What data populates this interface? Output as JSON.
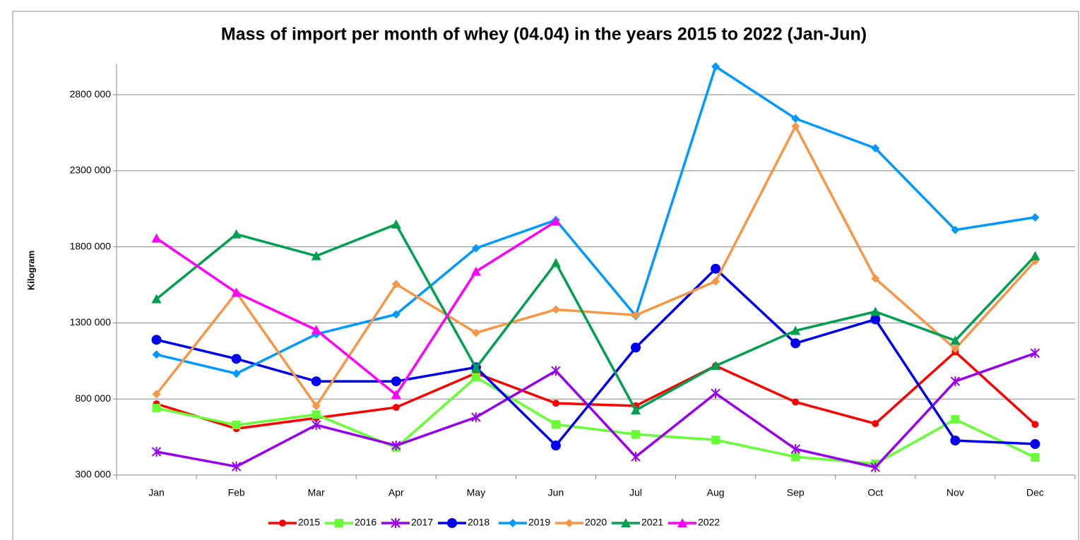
{
  "chart_data": {
    "type": "line",
    "title": "Mass of import per month of whey (04.04) in the years 2015 to 2022 (Jan-Jun)",
    "y_label": "Kilogram",
    "categories": [
      "Jan",
      "Feb",
      "Mar",
      "Apr",
      "May",
      "Jun",
      "Jul",
      "Aug",
      "Sep",
      "Oct",
      "Nov",
      "Dec"
    ],
    "ylim": [
      300000,
      3000000
    ],
    "yticks": [
      {
        "value": 300000,
        "label": "300 000"
      },
      {
        "value": 800000,
        "label": "800 000"
      },
      {
        "value": 1300000,
        "label": "1300 000"
      },
      {
        "value": 1800000,
        "label": "1800 000"
      },
      {
        "value": 2300000,
        "label": "2300 000"
      },
      {
        "value": 2800000,
        "label": "2800 000"
      }
    ],
    "grid": true,
    "legend": "bottom",
    "series": [
      {
        "name": "2015",
        "color": "#ff0000",
        "marker": "circle",
        "values": [
          768000,
          605000,
          675000,
          745000,
          970000,
          772000,
          755000,
          1018000,
          780000,
          638000,
          1110000,
          633000
        ]
      },
      {
        "name": "2016",
        "color": "#66ff33",
        "marker": "square",
        "values": [
          740000,
          629000,
          698000,
          480000,
          943000,
          633000,
          568000,
          531000,
          420000,
          374000,
          666000,
          416000
        ]
      },
      {
        "name": "2017",
        "color": "#9900ee",
        "marker": "star",
        "values": [
          453000,
          356000,
          629000,
          494000,
          680000,
          985000,
          420000,
          837000,
          471000,
          351000,
          916000,
          1101000
        ]
      },
      {
        "name": "2018",
        "color": "#0000ee",
        "marker": "bigcircle",
        "values": [
          1189000,
          1064000,
          916000,
          916000,
          1008000,
          494000,
          1138000,
          1656000,
          1166000,
          1323000,
          527000,
          504000
        ]
      },
      {
        "name": "2019",
        "color": "#0099ff",
        "marker": "diamond",
        "values": [
          1092000,
          967000,
          1226000,
          1356000,
          1791000,
          1976000,
          1346000,
          2985000,
          2643000,
          2448000,
          1911000,
          1994000
        ]
      },
      {
        "name": "2020",
        "color": "#f79646",
        "marker": "diamond",
        "values": [
          832000,
          1499000,
          754000,
          1555000,
          1235000,
          1388000,
          1351000,
          1573000,
          2592000,
          1592000,
          1129000,
          1707000
        ]
      },
      {
        "name": "2021",
        "color": "#00a050",
        "marker": "triangle",
        "values": [
          1457000,
          1883000,
          1740000,
          1948000,
          1004000,
          1694000,
          726000,
          1018000,
          1249000,
          1374000,
          1184000,
          1740000
        ]
      },
      {
        "name": "2022",
        "color": "#ff00ff",
        "marker": "triangle",
        "values": [
          1856000,
          1499000,
          1254000,
          828000,
          1638000,
          1967000,
          null,
          null,
          null,
          null,
          null,
          null
        ]
      }
    ]
  }
}
